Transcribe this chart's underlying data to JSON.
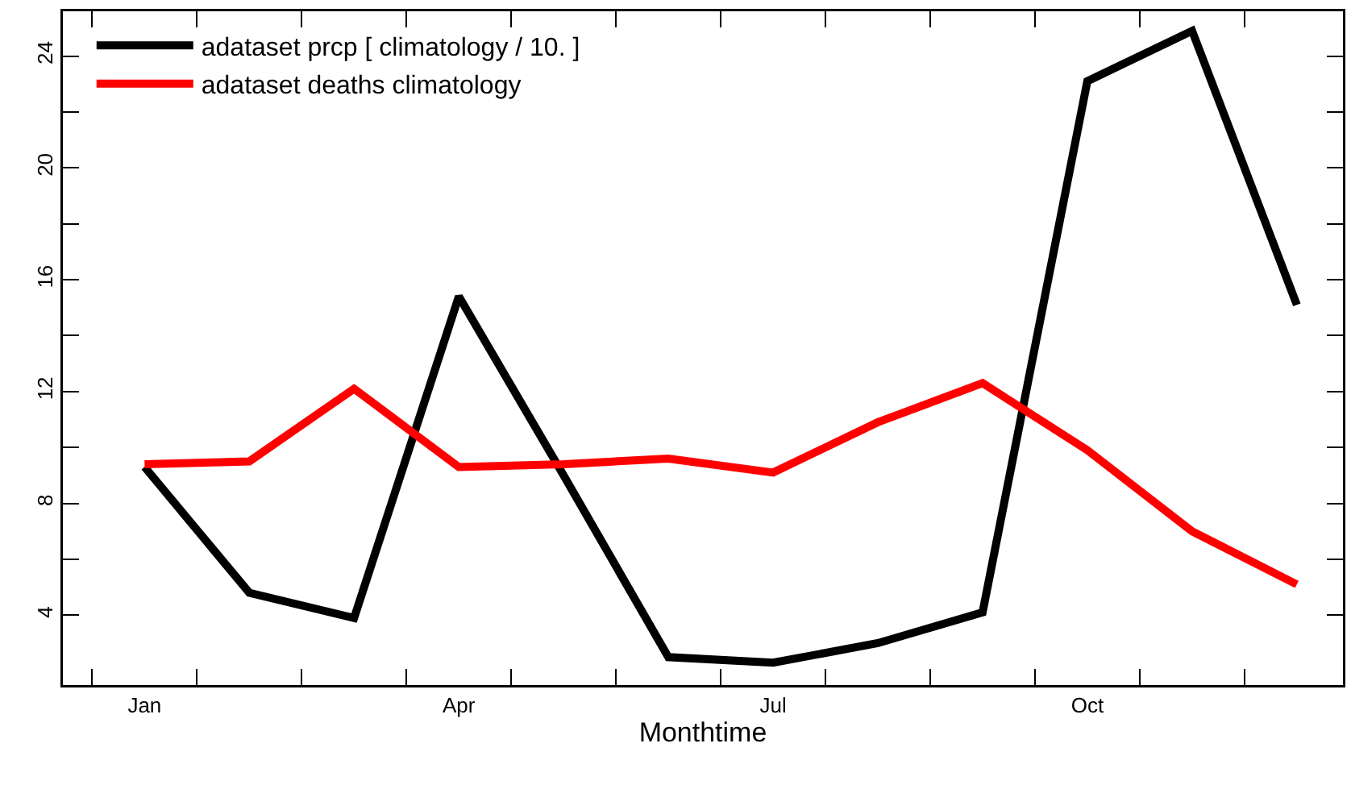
{
  "chart_data": {
    "type": "line",
    "xlabel": "Monthtime",
    "categories": [
      "Jan",
      null,
      null,
      "Apr",
      null,
      null,
      "Jul",
      null,
      null,
      "Oct",
      null,
      null
    ],
    "series": [
      {
        "name": "adataset prcp [ climatology / 10. ]",
        "color": "#000000",
        "values": [
          9.3,
          4.8,
          3.9,
          15.4,
          9.0,
          2.5,
          2.3,
          3.0,
          4.1,
          23.1,
          24.9,
          15.1
        ]
      },
      {
        "name": "adataset deaths climatology",
        "color": "#ff0000",
        "values": [
          9.4,
          9.5,
          12.1,
          9.3,
          9.4,
          9.6,
          9.1,
          10.9,
          12.3,
          9.9,
          7.0,
          5.1
        ]
      }
    ],
    "ylim": [
      1.5,
      25.6
    ],
    "yticks": [
      4,
      {
        "value": 6,
        "label": null
      },
      8,
      {
        "value": 10,
        "label": null
      },
      12,
      {
        "value": 14,
        "label": null
      },
      16,
      {
        "value": 18,
        "label": null
      },
      20,
      {
        "value": 22,
        "label": null
      },
      24
    ],
    "grid": false,
    "legend": "top left",
    "marker": "none",
    "line_style": "solid"
  }
}
